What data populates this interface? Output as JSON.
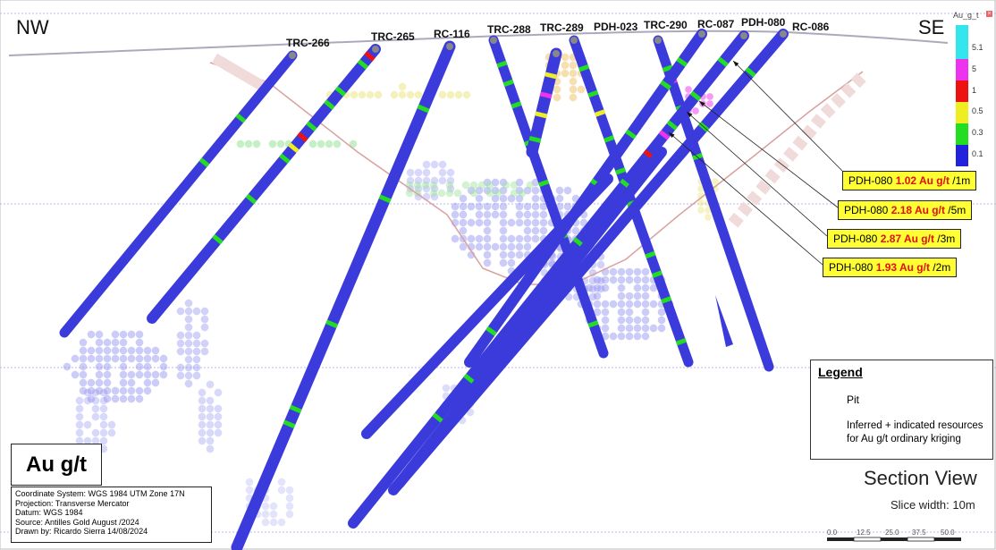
{
  "orientation": {
    "left": "NW",
    "right": "SE"
  },
  "holes": [
    {
      "name": "TRC-266"
    },
    {
      "name": "TRC-265"
    },
    {
      "name": "RC-116"
    },
    {
      "name": "TRC-288"
    },
    {
      "name": "TRC-289"
    },
    {
      "name": "PDH-023"
    },
    {
      "name": "TRC-290"
    },
    {
      "name": "RC-087"
    },
    {
      "name": "PDH-080"
    },
    {
      "name": "RC-086"
    }
  ],
  "callouts": [
    {
      "hole": "PDH-080",
      "value": "1.02 Au g/t",
      "interval": "/1m"
    },
    {
      "hole": "PDH-080",
      "value": "2.18 Au g/t",
      "interval": "/5m"
    },
    {
      "hole": "PDH-080",
      "value": "2.87 Au g/t",
      "interval": "/3m"
    },
    {
      "hole": "PDH-080",
      "value": "1.93 Au g/t",
      "interval": "/2m"
    }
  ],
  "grade_scale": {
    "title": "Au_g_t",
    "bins": [
      {
        "label": "5.1",
        "color": "#33e6ee"
      },
      {
        "label": "5",
        "color": "#ee33ee"
      },
      {
        "label": "1",
        "color": "#ee1111"
      },
      {
        "label": "0.5",
        "color": "#eeee22"
      },
      {
        "label": "0.3",
        "color": "#22dd22"
      },
      {
        "label": "0.1",
        "color": "#2222dd"
      }
    ]
  },
  "colors": {
    "drillhole": "#3b3bdc",
    "pit": "#c8902a",
    "resource_blue": "#8e8ef0"
  },
  "legend": {
    "title": "Legend",
    "pit_label": "Pit",
    "resources_label": "Inferred + indicated resources for Au g/t ordinary kriging"
  },
  "units_label": "Au g/t",
  "info": {
    "coordinate_system": "Coordinate System: WGS 1984 UTM Zone 17N",
    "projection": "Projection: Transverse Mercator",
    "datum": "Datum: WGS 1984",
    "source": "Source: Antilles Gold  August /2024",
    "drawn_by": "Drawn by: Ricardo Sierra 14/08/2024"
  },
  "view": {
    "title": "Section View",
    "slice_width": "Slice width: 10m"
  },
  "scale_bar": {
    "labels": [
      "0.0",
      "12.5",
      "25.0",
      "37.5",
      "50.0"
    ]
  }
}
